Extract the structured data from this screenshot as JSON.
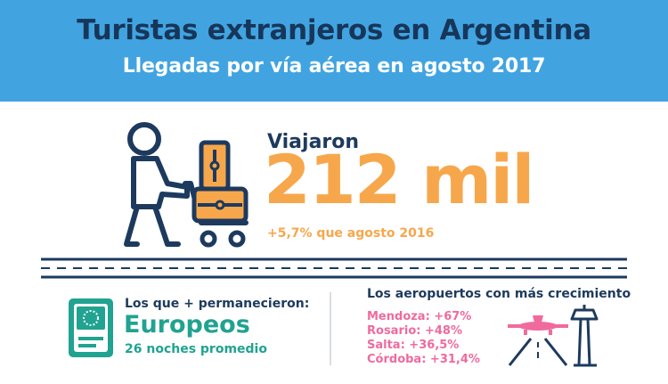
{
  "header": {
    "title": "Turistas extranjeros en Argentina",
    "subtitle": "Llegadas por vía aérea en agosto 2017"
  },
  "hero": {
    "label": "Viajaron",
    "value": "212 mil",
    "change": "+5,7% que agosto 2016"
  },
  "stay": {
    "title": "Los que + permanecieron:",
    "value": "Europeos",
    "detail": "26 noches promedio"
  },
  "airports": {
    "title": "Los aeropuertos con más crecimiento",
    "items": [
      {
        "text": "Mendoza: +67%"
      },
      {
        "text": "Rosario: +48%"
      },
      {
        "text": "Salta: +36,5%"
      },
      {
        "text": "Córdoba: +31,4%"
      }
    ]
  },
  "colors": {
    "header_bg": "#41a4e1",
    "navy": "#1d3a5e",
    "orange": "#f7a74b",
    "teal": "#20a390",
    "pink": "#f06a9e"
  },
  "icons": {
    "traveler": "traveler-with-luggage-cart-icon",
    "passport": "passport-icon",
    "airport": "airport-plane-tower-icon"
  }
}
